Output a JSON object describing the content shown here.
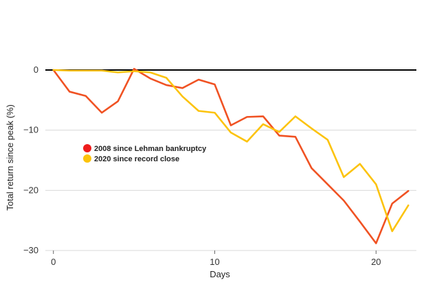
{
  "chart_data": {
    "type": "line",
    "xlabel": "Days",
    "ylabel": "Total return since peak (%)",
    "xlim": [
      -0.5,
      22.5
    ],
    "ylim": [
      -30,
      0
    ],
    "xticks": [
      0,
      10,
      20
    ],
    "yticks": [
      0,
      -10,
      -20,
      -30
    ],
    "grid": true,
    "legend_position": "middle-left",
    "series": [
      {
        "name": "2008 since Lehman bankruptcy",
        "color": "#f05223",
        "x": [
          0,
          1,
          2,
          3,
          4,
          5,
          6,
          7,
          8,
          9,
          10,
          11,
          12,
          13,
          14,
          15,
          16,
          17,
          18,
          19,
          20,
          21,
          22
        ],
        "values": [
          0,
          -3.6,
          -4.3,
          -7.1,
          -5.2,
          0.2,
          -1.4,
          -2.5,
          -3.0,
          -1.6,
          -2.4,
          -9.2,
          -7.8,
          -7.7,
          -10.9,
          -11.1,
          -16.3,
          -19.0,
          -21.7,
          -25.2,
          -28.8,
          -22.2,
          -20.1
        ]
      },
      {
        "name": "2020 since record close",
        "color": "#fcc30c",
        "x": [
          0,
          1,
          2,
          3,
          4,
          5,
          6,
          7,
          8,
          9,
          10,
          11,
          12,
          13,
          14,
          15,
          16,
          17,
          18,
          19,
          20,
          21,
          22
        ],
        "values": [
          0,
          -0.1,
          -0.1,
          -0.1,
          -0.4,
          -0.2,
          -0.4,
          -1.3,
          -4.4,
          -6.8,
          -7.1,
          -10.4,
          -11.9,
          -9.0,
          -10.3,
          -7.7,
          -9.7,
          -11.6,
          -17.8,
          -15.6,
          -19.0,
          -26.8,
          -22.5
        ]
      }
    ]
  }
}
